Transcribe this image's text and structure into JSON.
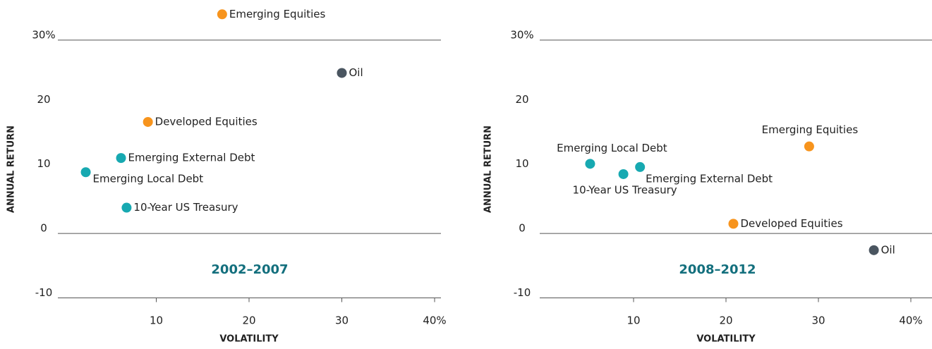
{
  "chart_data": [
    {
      "type": "scatter",
      "title": "2002–2007",
      "xlabel": "VOLATILITY",
      "ylabel": "ANNUAL RETURN",
      "xlim": [
        0,
        40
      ],
      "ylim": [
        -10,
        36
      ],
      "xticks": [
        10,
        20,
        30,
        {
          "value": 40,
          "label": "40%"
        }
      ],
      "yticks": [
        {
          "value": 30,
          "label": "30%"
        },
        20,
        10,
        0,
        -10
      ],
      "series": [
        {
          "name": "Emerging Equities",
          "color": "#f7941d",
          "x": [
            17.1
          ],
          "values": [
            34.0
          ]
        },
        {
          "name": "Oil",
          "color": "#4a5560",
          "x": [
            30.0
          ],
          "values": [
            24.9
          ]
        },
        {
          "name": "Developed Equities",
          "color": "#f7941d",
          "x": [
            9.1
          ],
          "values": [
            17.3
          ]
        },
        {
          "name": "Emerging External Debt",
          "color": "#17a9b1",
          "x": [
            6.2
          ],
          "values": [
            11.7
          ]
        },
        {
          "name": "Emerging Local Debt",
          "color": "#17a9b1",
          "x": [
            2.4
          ],
          "values": [
            9.5
          ]
        },
        {
          "name": "10-Year US Treasury",
          "color": "#17a9b1",
          "x": [
            6.8
          ],
          "values": [
            4.0
          ]
        }
      ]
    },
    {
      "type": "scatter",
      "title": "2008–2012",
      "xlabel": "VOLATILITY",
      "ylabel": "ANNUAL RETURN",
      "xlim": [
        0,
        40
      ],
      "ylim": [
        -10,
        36
      ],
      "xticks": [
        10,
        20,
        30,
        {
          "value": 40,
          "label": "40%"
        }
      ],
      "yticks": [
        {
          "value": 30,
          "label": "30%"
        },
        20,
        10,
        0,
        -10
      ],
      "series": [
        {
          "name": "Emerging Local Debt",
          "color": "#17a9b1",
          "x": [
            5.3
          ],
          "values": [
            10.8
          ]
        },
        {
          "name": "10-Year US Treasury",
          "color": "#17a9b1",
          "x": [
            8.9
          ],
          "values": [
            9.2
          ]
        },
        {
          "name": "Emerging External Debt",
          "color": "#17a9b1",
          "x": [
            10.7
          ],
          "values": [
            10.3
          ]
        },
        {
          "name": "Emerging Equities",
          "color": "#f7941d",
          "x": [
            29.0
          ],
          "values": [
            13.5
          ]
        },
        {
          "name": "Developed Equities",
          "color": "#f7941d",
          "x": [
            20.8
          ],
          "values": [
            1.5
          ]
        },
        {
          "name": "Oil",
          "color": "#4a5560",
          "x": [
            36.0
          ],
          "values": [
            -2.6
          ]
        }
      ]
    }
  ]
}
